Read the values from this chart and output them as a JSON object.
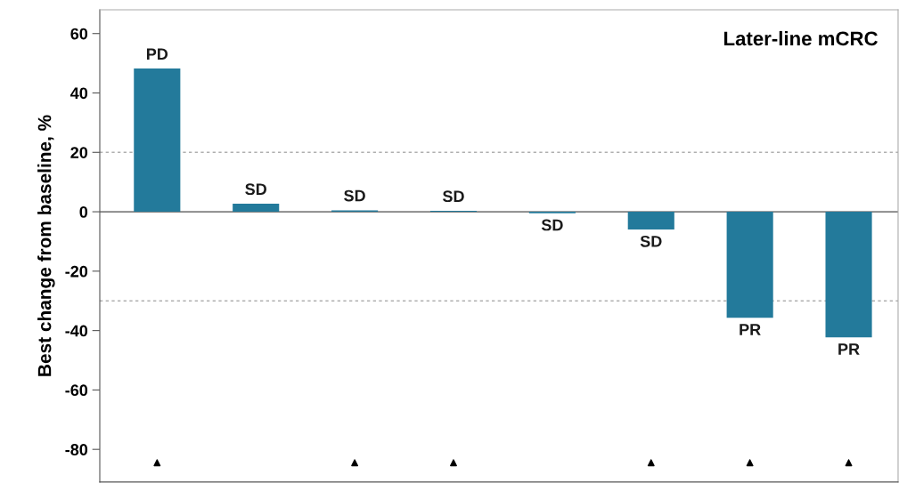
{
  "chart_data": {
    "type": "bar",
    "title": "Later-line mCRC",
    "ylabel": "Best change from baseline, %",
    "categories": [
      null,
      null,
      null,
      null,
      null,
      null,
      null,
      null
    ],
    "series": [
      {
        "color": "#237a9b",
        "values": [
          48.2,
          2.7,
          0.5,
          0.3,
          -0.5,
          -6.0,
          -35.7,
          -42.3
        ],
        "value_labels": [
          "PD",
          "SD",
          "SD",
          "SD",
          "SD",
          "SD",
          "PR",
          "PR"
        ]
      },
      {
        "type": "scatter",
        "color": "#000000",
        "marker": "triangle",
        "values": [
          -84.5,
          null,
          -84.5,
          -84.5,
          null,
          -84.5,
          -84.5,
          -84.5
        ]
      }
    ],
    "ylim": [
      -91,
      68
    ],
    "yticks": [
      -80,
      -60,
      -40,
      -20,
      0,
      20,
      40,
      60
    ],
    "tick_labels": "y",
    "grid": false,
    "legend": false,
    "ref_lines": [
      {
        "axis": "y",
        "value": 0,
        "color": "#808080",
        "line_style": "solid"
      },
      {
        "axis": "y",
        "value": 20,
        "color": "#b0b0b0",
        "line_style": "dotted"
      },
      {
        "axis": "y",
        "value": -30,
        "color": "#b0b0b0",
        "line_style": "dotted"
      }
    ]
  }
}
